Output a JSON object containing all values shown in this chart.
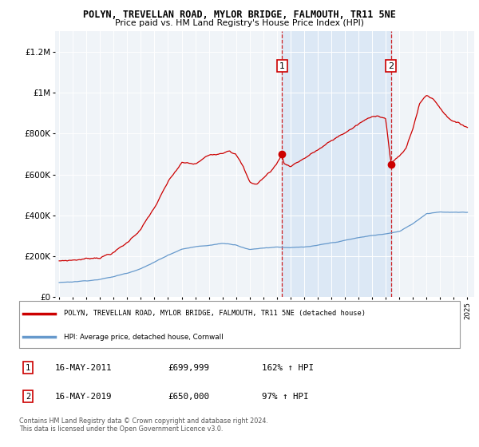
{
  "title": "POLYN, TREVELLAN ROAD, MYLOR BRIDGE, FALMOUTH, TR11 5NE",
  "subtitle": "Price paid vs. HM Land Registry's House Price Index (HPI)",
  "footer": "Contains HM Land Registry data © Crown copyright and database right 2024.\nThis data is licensed under the Open Government Licence v3.0.",
  "legend_line1": "POLYN, TREVELLAN ROAD, MYLOR BRIDGE, FALMOUTH, TR11 5NE (detached house)",
  "legend_line2": "HPI: Average price, detached house, Cornwall",
  "transactions": [
    {
      "num": 1,
      "date": "16-MAY-2011",
      "price": "£699,999",
      "hpi": "162% ↑ HPI",
      "year": 2011.38
    },
    {
      "num": 2,
      "date": "16-MAY-2019",
      "price": "£650,000",
      "hpi": "97% ↑ HPI",
      "year": 2019.38
    }
  ],
  "red_color": "#cc0000",
  "blue_color": "#6699cc",
  "shade_color": "#dce8f5",
  "background_plot": "#f0f4f8",
  "ylim": [
    0,
    1300000
  ],
  "xlim_start": 1994.7,
  "xlim_end": 2025.5,
  "marker1_year": 2011.38,
  "marker1_value": 699999,
  "marker2_year": 2019.38,
  "marker2_value": 650000,
  "yticks": [
    0,
    200000,
    400000,
    600000,
    800000,
    1000000,
    1200000
  ],
  "ytick_labels": [
    "£0",
    "£200K",
    "£400K",
    "£600K",
    "£800K",
    "£1M",
    "£1.2M"
  ],
  "xticks": [
    1995,
    1996,
    1997,
    1998,
    1999,
    2000,
    2001,
    2002,
    2003,
    2004,
    2005,
    2006,
    2007,
    2008,
    2009,
    2010,
    2011,
    2012,
    2013,
    2014,
    2015,
    2016,
    2017,
    2018,
    2019,
    2020,
    2021,
    2022,
    2023,
    2024,
    2025
  ]
}
